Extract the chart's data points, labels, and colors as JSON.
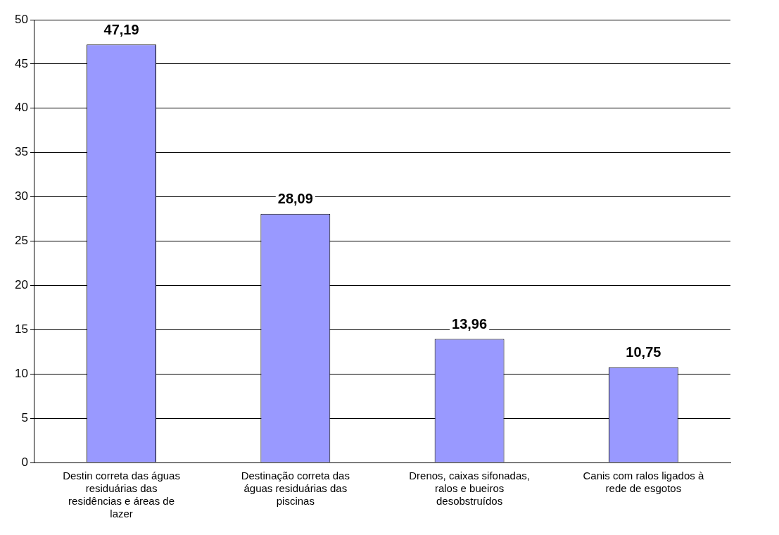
{
  "chart_data": {
    "type": "bar",
    "categories": [
      "Destin correta das águas residuárias das residências e áreas de lazer",
      "Destinação correta das águas residuárias das piscinas",
      "Drenos, caixas sifonadas, ralos e bueiros desobstruídos",
      "Canis com ralos ligados à rede de esgotos"
    ],
    "values": [
      47.19,
      28.09,
      13.96,
      10.75
    ],
    "value_labels": [
      "47,19",
      "28,09",
      "13,96",
      "10,75"
    ],
    "color": "#9999ff",
    "ylim": [
      0,
      50
    ],
    "yticks": [
      0,
      5,
      10,
      15,
      20,
      25,
      30,
      35,
      40,
      45,
      50
    ],
    "grid": "y",
    "legend": false
  }
}
